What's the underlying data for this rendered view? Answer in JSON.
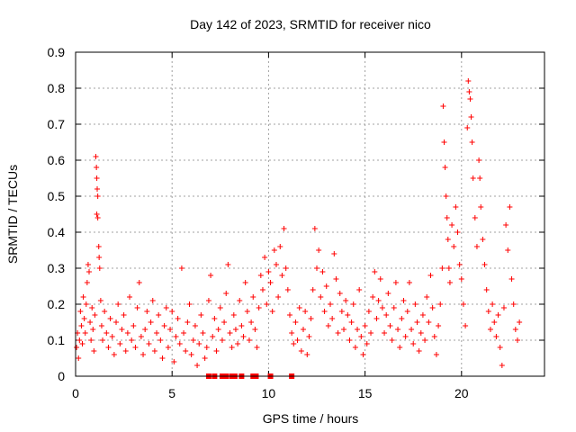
{
  "chart_data": {
    "type": "scatter",
    "title": "Day 142 of 2023, SRMTID for receiver nico",
    "xlabel": "GPS time / hours",
    "ylabel": "SRMTID / TECUs",
    "xlim": [
      0,
      24.3
    ],
    "ylim": [
      0,
      0.9
    ],
    "x_ticks": [
      0,
      5,
      10,
      15,
      20
    ],
    "x_tick_labels": [
      "0",
      "5",
      "10",
      "15",
      "20"
    ],
    "y_ticks": [
      0,
      0.1,
      0.2,
      0.3,
      0.4,
      0.5,
      0.6,
      0.7,
      0.8,
      0.9
    ],
    "y_tick_labels": [
      "0",
      "0.1",
      "0.2",
      "0.3",
      "0.4",
      "0.5",
      "0.6",
      "0.7",
      "0.8",
      "0.9"
    ],
    "grid": true,
    "marker": "+",
    "color": "#ff0000",
    "series": [
      {
        "name": "SRMTID",
        "points": [
          [
            0.05,
            0.08
          ],
          [
            0.1,
            0.12
          ],
          [
            0.15,
            0.05
          ],
          [
            0.2,
            0.1
          ],
          [
            0.25,
            0.18
          ],
          [
            0.3,
            0.14
          ],
          [
            0.35,
            0.09
          ],
          [
            0.4,
            0.22
          ],
          [
            0.45,
            0.16
          ],
          [
            0.5,
            0.12
          ],
          [
            0.55,
            0.2
          ],
          [
            0.6,
            0.26
          ],
          [
            0.65,
            0.31
          ],
          [
            0.7,
            0.29
          ],
          [
            0.75,
            0.15
          ],
          [
            0.8,
            0.1
          ],
          [
            0.85,
            0.19
          ],
          [
            0.9,
            0.13
          ],
          [
            0.95,
            0.07
          ],
          [
            1.0,
            0.17
          ],
          [
            1.05,
            0.61
          ],
          [
            1.08,
            0.58
          ],
          [
            1.1,
            0.55
          ],
          [
            1.12,
            0.52
          ],
          [
            1.15,
            0.5
          ],
          [
            1.1,
            0.45
          ],
          [
            1.15,
            0.44
          ],
          [
            1.2,
            0.36
          ],
          [
            1.22,
            0.33
          ],
          [
            1.25,
            0.3
          ],
          [
            1.3,
            0.21
          ],
          [
            1.35,
            0.14
          ],
          [
            1.4,
            0.1
          ],
          [
            1.5,
            0.18
          ],
          [
            1.6,
            0.12
          ],
          [
            1.7,
            0.08
          ],
          [
            1.8,
            0.16
          ],
          [
            1.9,
            0.11
          ],
          [
            2.0,
            0.06
          ],
          [
            2.1,
            0.15
          ],
          [
            2.2,
            0.2
          ],
          [
            2.3,
            0.09
          ],
          [
            2.4,
            0.13
          ],
          [
            2.5,
            0.17
          ],
          [
            2.6,
            0.07
          ],
          [
            2.7,
            0.12
          ],
          [
            2.8,
            0.22
          ],
          [
            2.9,
            0.1
          ],
          [
            3.0,
            0.14
          ],
          [
            3.1,
            0.08
          ],
          [
            3.2,
            0.19
          ],
          [
            3.3,
            0.26
          ],
          [
            3.4,
            0.11
          ],
          [
            3.5,
            0.06
          ],
          [
            3.6,
            0.13
          ],
          [
            3.7,
            0.18
          ],
          [
            3.8,
            0.09
          ],
          [
            3.9,
            0.15
          ],
          [
            4.0,
            0.21
          ],
          [
            4.1,
            0.07
          ],
          [
            4.2,
            0.12
          ],
          [
            4.3,
            0.17
          ],
          [
            4.4,
            0.1
          ],
          [
            4.5,
            0.05
          ],
          [
            4.6,
            0.14
          ],
          [
            4.7,
            0.19
          ],
          [
            4.8,
            0.08
          ],
          [
            4.9,
            0.13
          ],
          [
            5.0,
            0.18
          ],
          [
            5.1,
            0.04
          ],
          [
            5.2,
            0.11
          ],
          [
            5.3,
            0.16
          ],
          [
            5.4,
            0.09
          ],
          [
            5.5,
            0.3
          ],
          [
            5.6,
            0.12
          ],
          [
            5.7,
            0.07
          ],
          [
            5.8,
            0.15
          ],
          [
            5.9,
            0.2
          ],
          [
            6.0,
            0.06
          ],
          [
            6.1,
            0.1
          ],
          [
            6.2,
            0.14
          ],
          [
            6.3,
            0.03
          ],
          [
            6.4,
            0.09
          ],
          [
            6.5,
            0.17
          ],
          [
            6.6,
            0.12
          ],
          [
            6.7,
            0.05
          ],
          [
            6.8,
            0.08
          ],
          [
            6.9,
            0.21
          ],
          [
            7.0,
            0.28
          ],
          [
            7.1,
            0.11
          ],
          [
            7.2,
            0.16
          ],
          [
            7.3,
            0.07
          ],
          [
            7.4,
            0.13
          ],
          [
            7.5,
            0.19
          ],
          [
            7.6,
            0.1
          ],
          [
            7.7,
            0.15
          ],
          [
            7.8,
            0.23
          ],
          [
            7.9,
            0.31
          ],
          [
            8.0,
            0.12
          ],
          [
            8.1,
            0.08
          ],
          [
            8.2,
            0.17
          ],
          [
            8.3,
            0.13
          ],
          [
            8.4,
            0.09
          ],
          [
            8.5,
            0.21
          ],
          [
            8.6,
            0.14
          ],
          [
            8.7,
            0.11
          ],
          [
            8.8,
            0.26
          ],
          [
            8.9,
            0.18
          ],
          [
            9.0,
            0.1
          ],
          [
            9.1,
            0.15
          ],
          [
            9.2,
            0.22
          ],
          [
            9.3,
            0.13
          ],
          [
            9.4,
            0.08
          ],
          [
            9.5,
            0.19
          ],
          [
            9.6,
            0.28
          ],
          [
            9.7,
            0.24
          ],
          [
            9.8,
            0.33
          ],
          [
            9.9,
            0.2
          ],
          [
            10.0,
            0.29
          ],
          [
            10.1,
            0.26
          ],
          [
            10.2,
            0.18
          ],
          [
            10.3,
            0.35
          ],
          [
            10.4,
            0.31
          ],
          [
            10.5,
            0.22
          ],
          [
            10.6,
            0.36
          ],
          [
            10.7,
            0.28
          ],
          [
            10.8,
            0.41
          ],
          [
            10.9,
            0.3
          ],
          [
            11.0,
            0.24
          ],
          [
            11.1,
            0.17
          ],
          [
            11.2,
            0.12
          ],
          [
            11.3,
            0.09
          ],
          [
            11.4,
            0.15
          ],
          [
            11.5,
            0.1
          ],
          [
            11.6,
            0.19
          ],
          [
            11.7,
            0.07
          ],
          [
            11.8,
            0.13
          ],
          [
            11.9,
            0.18
          ],
          [
            12.0,
            0.06
          ],
          [
            12.1,
            0.11
          ],
          [
            12.2,
            0.16
          ],
          [
            12.3,
            0.24
          ],
          [
            12.4,
            0.41
          ],
          [
            12.5,
            0.3
          ],
          [
            12.6,
            0.35
          ],
          [
            12.7,
            0.22
          ],
          [
            12.8,
            0.29
          ],
          [
            12.9,
            0.18
          ],
          [
            13.0,
            0.25
          ],
          [
            13.1,
            0.14
          ],
          [
            13.2,
            0.2
          ],
          [
            13.3,
            0.16
          ],
          [
            13.4,
            0.34
          ],
          [
            13.5,
            0.27
          ],
          [
            13.6,
            0.12
          ],
          [
            13.7,
            0.23
          ],
          [
            13.8,
            0.18
          ],
          [
            13.9,
            0.13
          ],
          [
            14.0,
            0.21
          ],
          [
            14.1,
            0.17
          ],
          [
            14.2,
            0.1
          ],
          [
            14.3,
            0.15
          ],
          [
            14.4,
            0.2
          ],
          [
            14.5,
            0.08
          ],
          [
            14.6,
            0.13
          ],
          [
            14.7,
            0.24
          ],
          [
            14.8,
            0.11
          ],
          [
            14.9,
            0.06
          ],
          [
            15.0,
            0.14
          ],
          [
            15.1,
            0.09
          ],
          [
            15.2,
            0.18
          ],
          [
            15.3,
            0.12
          ],
          [
            15.4,
            0.22
          ],
          [
            15.5,
            0.29
          ],
          [
            15.6,
            0.16
          ],
          [
            15.7,
            0.21
          ],
          [
            15.8,
            0.27
          ],
          [
            15.9,
            0.19
          ],
          [
            16.0,
            0.12
          ],
          [
            16.1,
            0.17
          ],
          [
            16.2,
            0.23
          ],
          [
            16.3,
            0.14
          ],
          [
            16.4,
            0.1
          ],
          [
            16.5,
            0.19
          ],
          [
            16.6,
            0.26
          ],
          [
            16.7,
            0.13
          ],
          [
            16.8,
            0.08
          ],
          [
            16.9,
            0.16
          ],
          [
            17.0,
            0.21
          ],
          [
            17.1,
            0.11
          ],
          [
            17.2,
            0.18
          ],
          [
            17.3,
            0.26
          ],
          [
            17.4,
            0.13
          ],
          [
            17.5,
            0.09
          ],
          [
            17.6,
            0.2
          ],
          [
            17.7,
            0.15
          ],
          [
            17.8,
            0.07
          ],
          [
            17.9,
            0.12
          ],
          [
            18.0,
            0.17
          ],
          [
            18.1,
            0.1
          ],
          [
            18.2,
            0.22
          ],
          [
            18.3,
            0.15
          ],
          [
            18.4,
            0.28
          ],
          [
            18.5,
            0.19
          ],
          [
            18.6,
            0.11
          ],
          [
            18.7,
            0.06
          ],
          [
            18.8,
            0.14
          ],
          [
            18.9,
            0.2
          ],
          [
            19.0,
            0.3
          ],
          [
            19.05,
            0.75
          ],
          [
            19.1,
            0.65
          ],
          [
            19.15,
            0.58
          ],
          [
            19.2,
            0.5
          ],
          [
            19.25,
            0.44
          ],
          [
            19.3,
            0.38
          ],
          [
            19.35,
            0.3
          ],
          [
            19.4,
            0.26
          ],
          [
            19.5,
            0.42
          ],
          [
            19.6,
            0.36
          ],
          [
            19.7,
            0.47
          ],
          [
            19.8,
            0.4
          ],
          [
            19.9,
            0.31
          ],
          [
            20.0,
            0.27
          ],
          [
            20.1,
            0.2
          ],
          [
            20.2,
            0.14
          ],
          [
            20.3,
            0.69
          ],
          [
            20.35,
            0.82
          ],
          [
            20.4,
            0.79
          ],
          [
            20.45,
            0.77
          ],
          [
            20.5,
            0.72
          ],
          [
            20.55,
            0.65
          ],
          [
            20.6,
            0.55
          ],
          [
            20.7,
            0.44
          ],
          [
            20.8,
            0.36
          ],
          [
            20.9,
            0.6
          ],
          [
            20.95,
            0.55
          ],
          [
            21.0,
            0.47
          ],
          [
            21.1,
            0.38
          ],
          [
            21.2,
            0.31
          ],
          [
            21.3,
            0.24
          ],
          [
            21.4,
            0.18
          ],
          [
            21.5,
            0.13
          ],
          [
            21.6,
            0.2
          ],
          [
            21.7,
            0.15
          ],
          [
            21.8,
            0.11
          ],
          [
            21.9,
            0.17
          ],
          [
            22.0,
            0.08
          ],
          [
            22.1,
            0.03
          ],
          [
            22.2,
            0.19
          ],
          [
            22.3,
            0.42
          ],
          [
            22.4,
            0.35
          ],
          [
            22.5,
            0.47
          ],
          [
            22.6,
            0.27
          ],
          [
            22.7,
            0.2
          ],
          [
            22.8,
            0.13
          ],
          [
            22.9,
            0.1
          ],
          [
            23.0,
            0.15
          ]
        ]
      }
    ],
    "zero_markers_x": [
      6.9,
      7.2,
      7.6,
      7.8,
      8.1,
      8.25,
      8.6,
      9.2,
      9.35,
      10.1,
      11.2
    ]
  }
}
